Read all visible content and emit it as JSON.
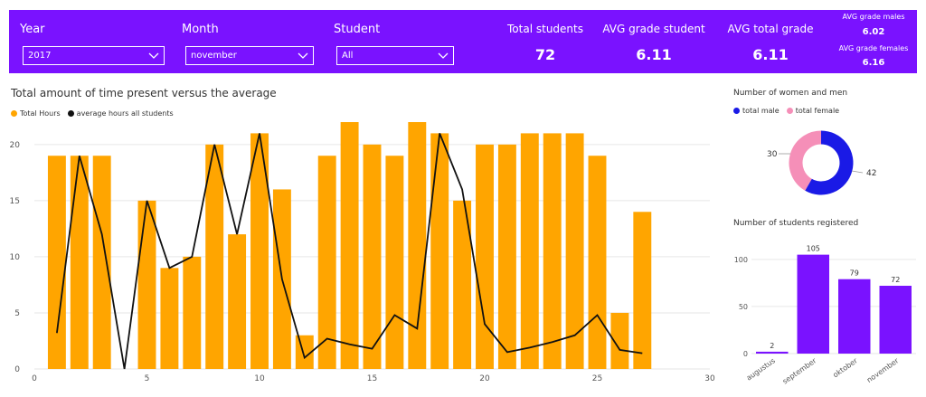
{
  "filters": {
    "year": {
      "label": "Year",
      "value": "2017"
    },
    "month": {
      "label": "Month",
      "value": "november"
    },
    "student": {
      "label": "Student",
      "value": "All"
    }
  },
  "kpis": {
    "total_students": {
      "label": "Total students",
      "value": "72"
    },
    "avg_grade_student": {
      "label": "AVG grade student",
      "value": "6.11"
    },
    "avg_total_grade": {
      "label": "AVG total grade",
      "value": "6.11"
    },
    "avg_grade_males": {
      "label": "AVG grade males",
      "value": "6.02"
    },
    "avg_grade_females": {
      "label": "AVG grade females",
      "value": "6.16"
    }
  },
  "colors": {
    "header": "#7a12ff",
    "bar": "#ffa500",
    "line": "#111111",
    "male": "#1a1ae6",
    "female": "#f58fb8",
    "students_bar": "#7a12ff"
  },
  "chart_data": [
    {
      "type": "bar",
      "title": "Total amount of time present versus the average",
      "legend": [
        "Total Hours",
        "average hours all students"
      ],
      "legend_position": "top-left",
      "xlim": [
        0,
        30
      ],
      "ylim": [
        0,
        22
      ],
      "xticks": [
        0,
        5,
        10,
        15,
        20,
        25,
        30
      ],
      "yticks": [
        0,
        5,
        10,
        15,
        20
      ],
      "grid": true,
      "series": [
        {
          "name": "Total Hours",
          "type": "bar",
          "x": [
            1,
            2,
            3,
            5,
            6,
            7,
            8,
            9,
            10,
            11,
            12,
            13,
            14,
            15,
            16,
            17,
            18,
            19,
            20,
            21,
            22,
            23,
            24,
            25,
            26,
            27
          ],
          "values": [
            19,
            19,
            19,
            15,
            9,
            10,
            20,
            12,
            21,
            16,
            3,
            19,
            22,
            20,
            19,
            22,
            21,
            15,
            20,
            20,
            21,
            21,
            21,
            19,
            5,
            14
          ]
        },
        {
          "name": "average hours all students",
          "type": "line",
          "x": [
            1,
            2,
            3,
            4,
            5,
            6,
            7,
            8,
            9,
            10,
            11,
            12,
            13,
            14,
            15,
            16,
            17,
            18,
            19,
            20,
            21,
            22,
            23,
            24,
            25,
            26,
            27
          ],
          "values": [
            3.2,
            19,
            12,
            0,
            15,
            9,
            10,
            20,
            12,
            21,
            8,
            1,
            2.7,
            2.2,
            1.8,
            4.8,
            3.6,
            21,
            16,
            4,
            1.5,
            1.9,
            2.4,
            3,
            4.8,
            1.7,
            1.4
          ]
        }
      ]
    },
    {
      "type": "pie",
      "title": "Number of women and men",
      "legend": [
        "total male",
        "total female"
      ],
      "legend_position": "top-left",
      "labels": [
        "total male",
        "total female"
      ],
      "values": [
        42,
        30
      ],
      "data_labels": [
        "42",
        "30"
      ]
    },
    {
      "type": "bar",
      "title": "Number of students registered",
      "categories": [
        "augustus",
        "september",
        "oktober",
        "november"
      ],
      "values": [
        2,
        105,
        79,
        72
      ],
      "data_labels": [
        "2",
        "105",
        "79",
        "72"
      ],
      "yticks": [
        0,
        50,
        100
      ],
      "ylim": [
        0,
        120
      ],
      "grid": true
    }
  ]
}
